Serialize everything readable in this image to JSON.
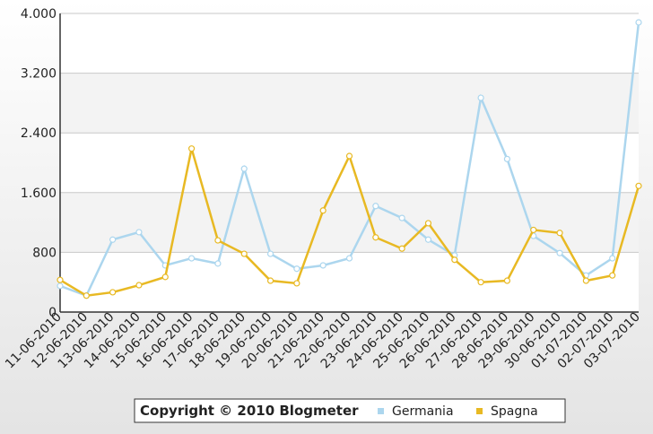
{
  "chart_data": {
    "type": "line",
    "legend_title": "Copyright © 2010 Blogmeter",
    "categories": [
      "11-06-2010",
      "12-06-2010",
      "13-06-2010",
      "14-06-2010",
      "15-06-2010",
      "16-06-2010",
      "17-06-2010",
      "18-06-2010",
      "19-06-2010",
      "20-06-2010",
      "21-06-2010",
      "22-06-2010",
      "23-06-2010",
      "24-06-2010",
      "25-06-2010",
      "26-06-2010",
      "27-06-2010",
      "28-06-2010",
      "29-06-2010",
      "30-06-2010",
      "01-07-2010",
      "02-07-2010",
      "03-07-2010"
    ],
    "series": [
      {
        "name": "Germania",
        "color": "#acd6ee",
        "values": [
          350,
          220,
          970,
          1070,
          625,
          720,
          650,
          1920,
          780,
          580,
          625,
          720,
          1420,
          1260,
          970,
          760,
          2870,
          2050,
          1020,
          790,
          490,
          720,
          3880
        ]
      },
      {
        "name": "Spagna",
        "color": "#e8b923",
        "values": [
          430,
          220,
          265,
          360,
          470,
          2190,
          960,
          780,
          420,
          385,
          1360,
          2090,
          1000,
          850,
          1190,
          700,
          400,
          420,
          1100,
          1060,
          420,
          490,
          1690
        ]
      }
    ],
    "ylim": [
      0,
      4000
    ],
    "yticks": [
      0,
      800,
      {
        "value": 1600,
        "label": "1.600"
      },
      {
        "value": 2400,
        "label": "2.400"
      },
      {
        "value": 3200,
        "label": "3.200"
      },
      {
        "value": 4000,
        "label": "4.000"
      }
    ],
    "grid": true,
    "bands": true
  }
}
